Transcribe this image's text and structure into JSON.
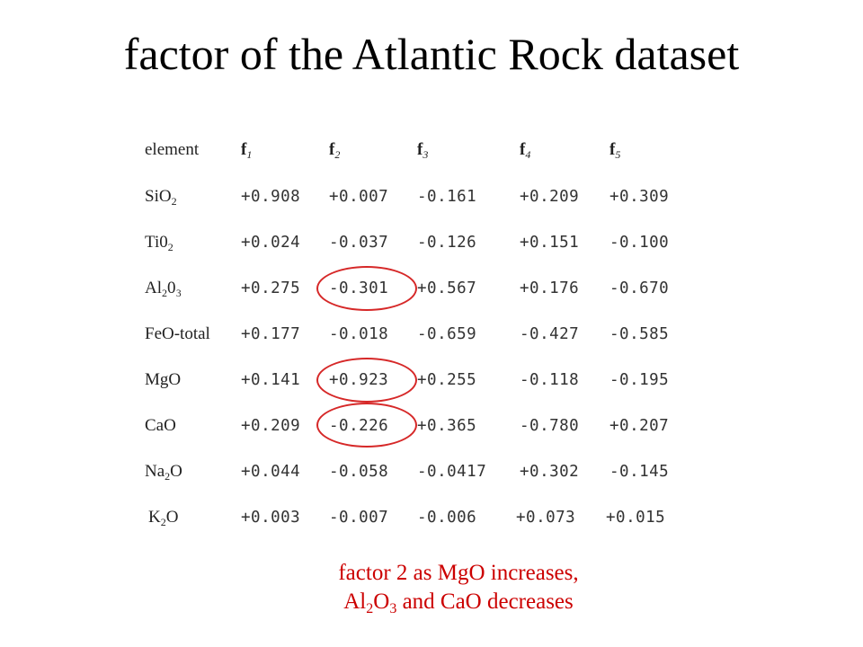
{
  "title": "factor of the Atlantic Rock dataset",
  "table": {
    "header_label": "element",
    "factor_prefix": "f",
    "factor_subs": [
      "1",
      "2",
      "3",
      "4",
      "5"
    ],
    "rows": [
      {
        "base": "SiO",
        "sub": "2",
        "tail": "",
        "values": [
          "+0.908",
          "+0.007",
          "-0.161",
          "+0.209",
          "+0.309"
        ]
      },
      {
        "base": "Ti0",
        "sub": "2",
        "tail": "",
        "values": [
          "+0.024",
          "-0.037",
          "-0.126",
          "+0.151",
          "-0.100"
        ]
      },
      {
        "base": "Al",
        "sub": "2",
        "tail": "0₃",
        "values": [
          "+0.275",
          "-0.301",
          "+0.567",
          "+0.176",
          "-0.670"
        ]
      },
      {
        "base": "FeO-total",
        "sub": "",
        "tail": "",
        "values": [
          "+0.177",
          "-0.018",
          "-0.659",
          "-0.427",
          "-0.585"
        ]
      },
      {
        "base": "MgO",
        "sub": "",
        "tail": "",
        "values": [
          "+0.141",
          "+0.923",
          "+0.255",
          "-0.118",
          "-0.195"
        ]
      },
      {
        "base": "CaO",
        "sub": "",
        "tail": "",
        "values": [
          "+0.209",
          "-0.226",
          "+0.365",
          "-0.780",
          "+0.207"
        ]
      },
      {
        "base": "Na",
        "sub": "2",
        "tail": "O",
        "values": [
          "+0.044",
          "-0.058",
          "-0.0417",
          "+0.302",
          "-0.145"
        ]
      },
      {
        "base": "K",
        "sub": "2",
        "tail": "O",
        "values": [
          "+0.003",
          "-0.007",
          "-0.006",
          "+0.073",
          "+0.015"
        ]
      }
    ]
  },
  "caption": {
    "line1": "factor 2 as MgO increases,",
    "line2_a": "Al",
    "line2_sub1": "2",
    "line2_b": "O",
    "line2_sub2": "3",
    "line2_c": " and CaO decreases"
  },
  "colors": {
    "highlight": "#d62828",
    "caption": "#cc0000"
  }
}
